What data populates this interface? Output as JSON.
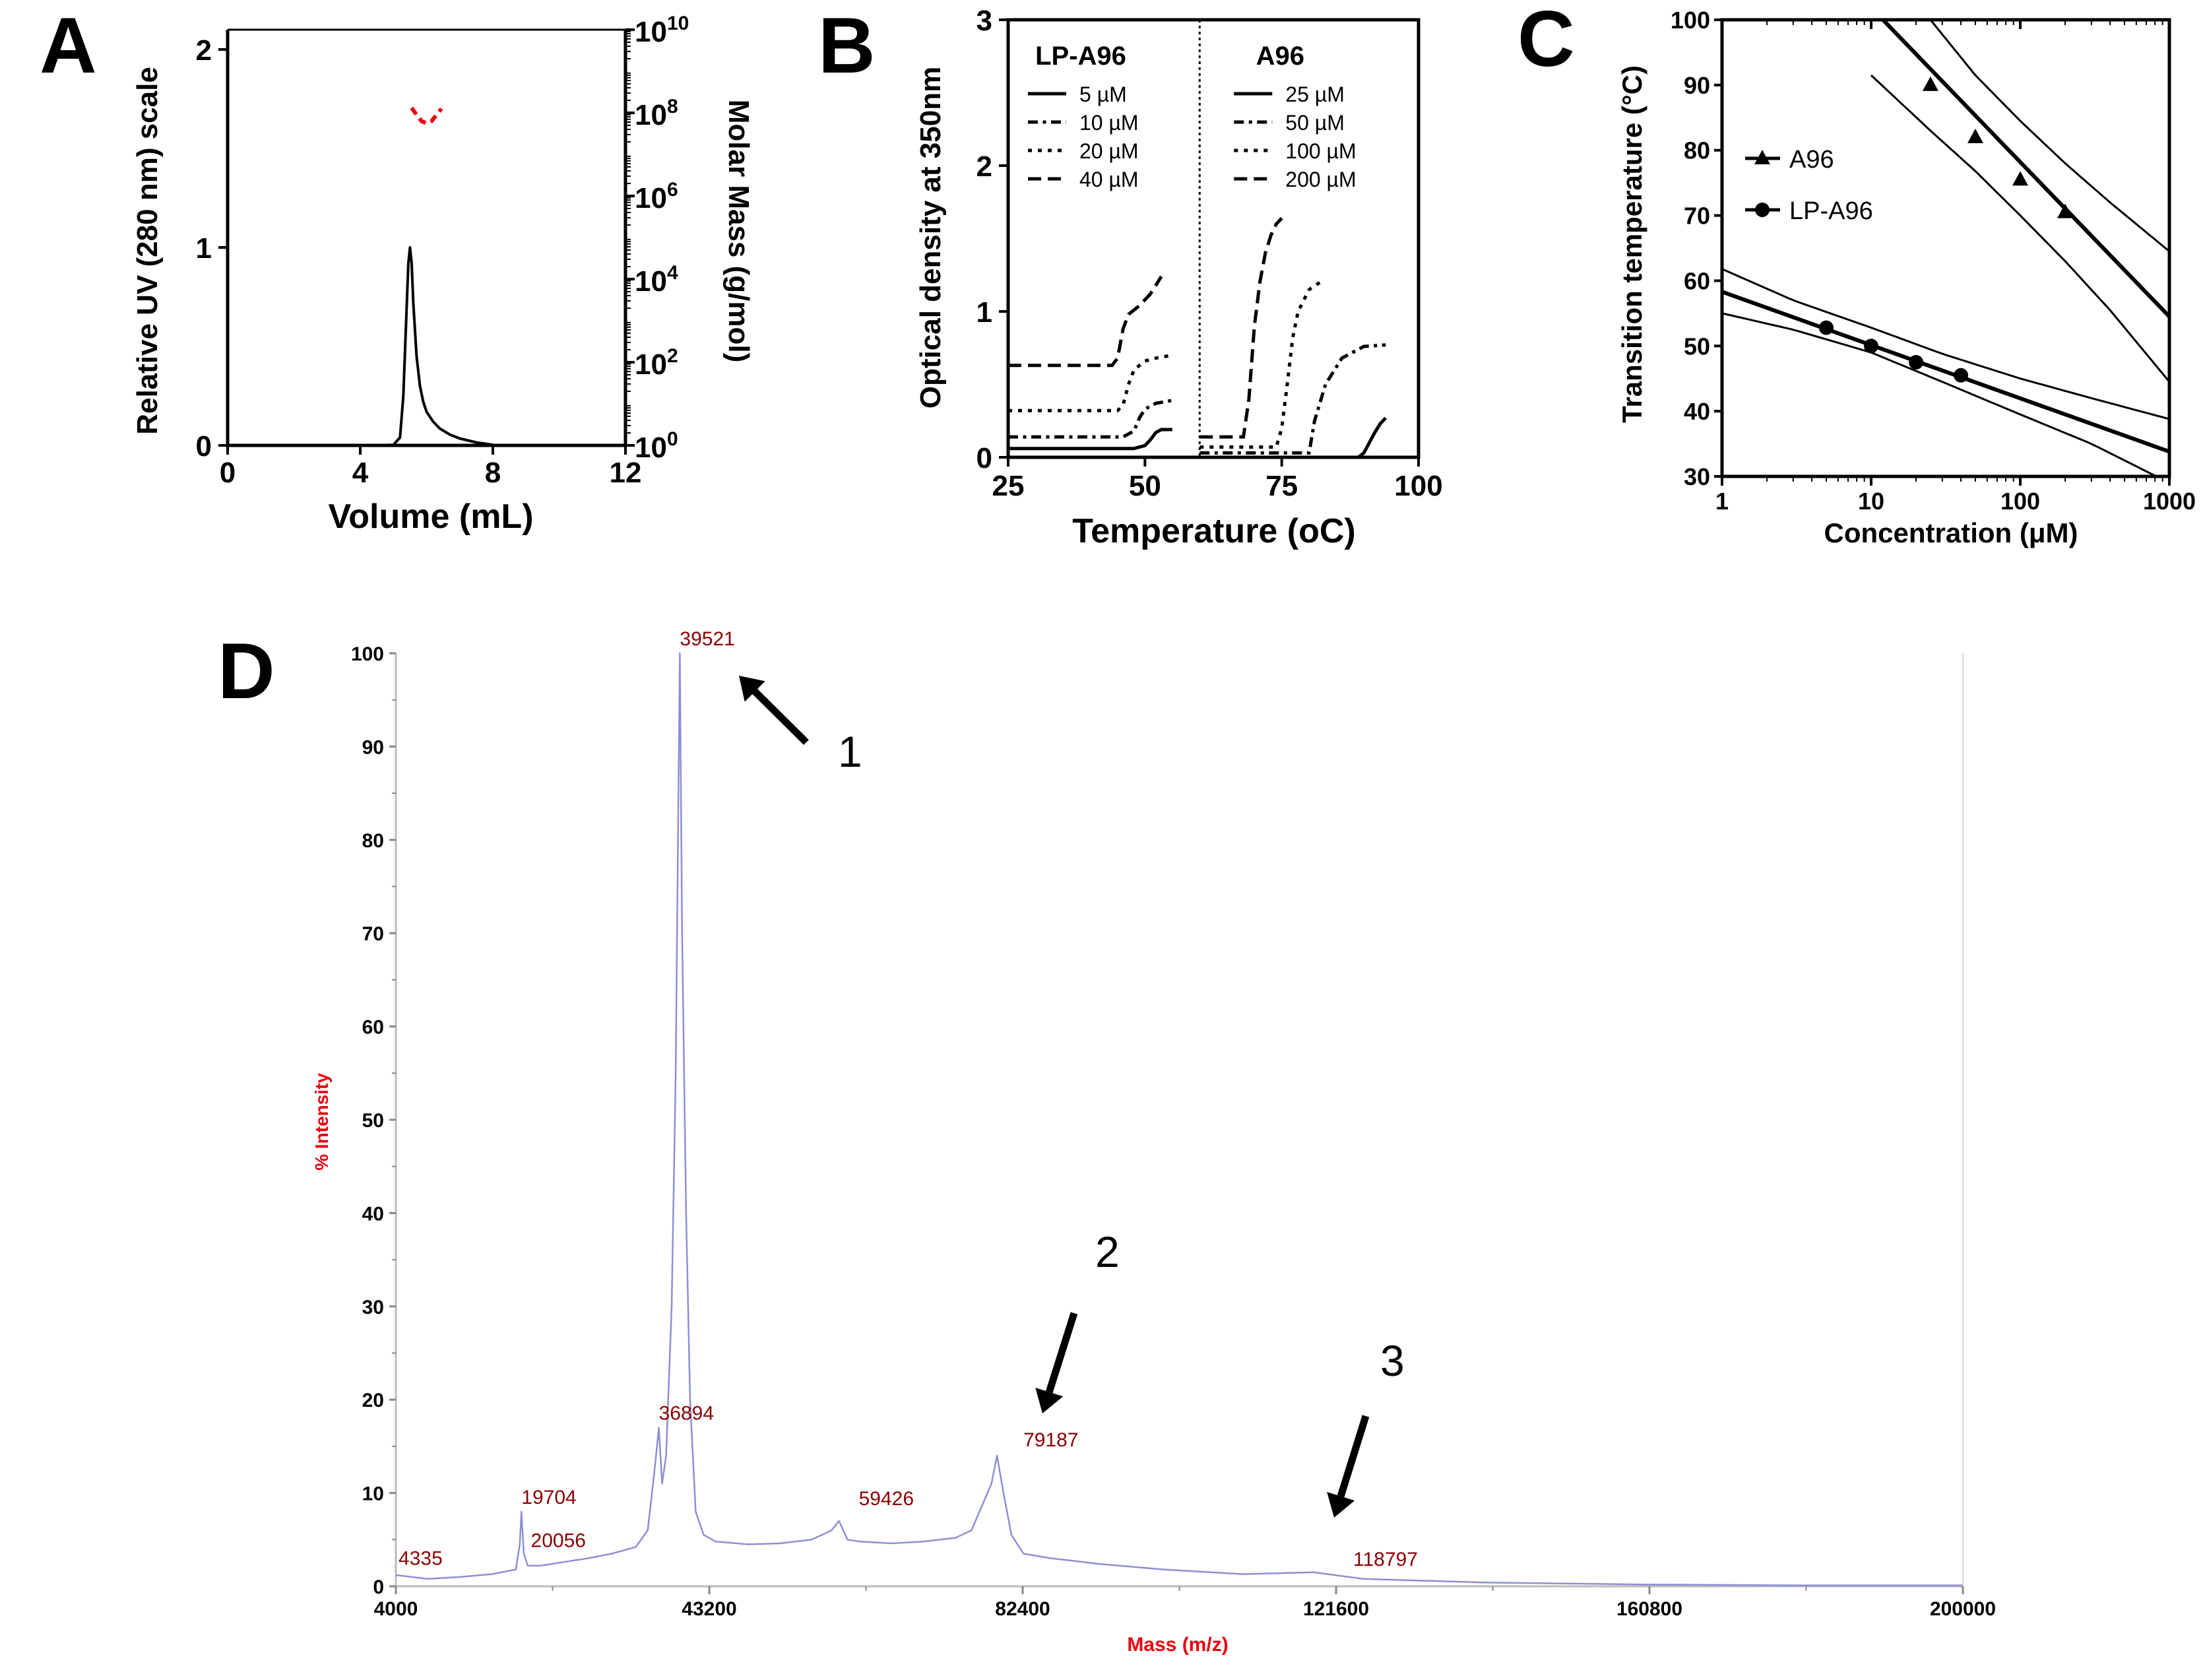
{
  "colors": {
    "axis": "#000000",
    "red": "#e8000f",
    "dark_red": "#8b0000",
    "spectrum": "#8e8fd4",
    "plot": "#000000"
  },
  "panels": {
    "A": {
      "label": "A"
    },
    "B": {
      "label": "B"
    },
    "C": {
      "label": "C"
    },
    "D": {
      "label": "D"
    }
  },
  "annotations": [
    {
      "label": "1",
      "points_to_value": "39521"
    },
    {
      "label": "2",
      "points_to_value": "79187"
    },
    {
      "label": "3",
      "points_to_value": "118797"
    }
  ],
  "chart_data": [
    {
      "id": "A",
      "type": "line",
      "title": "",
      "xlabel": "Volume (mL)",
      "ylabel": "Relative UV (280 nm) scale",
      "y2label": "Molar Mass (g/mol)",
      "xlim": [
        0,
        12
      ],
      "ylim": [
        0,
        2.1
      ],
      "xticks": [
        "0",
        "4",
        "8",
        "12"
      ],
      "yticks": [
        "0",
        "1",
        "2"
      ],
      "y2lim_log10": [
        0,
        10
      ],
      "y2ticks": [
        {
          "base": "10",
          "exp": "0",
          "log": 0
        },
        {
          "base": "10",
          "exp": "2",
          "log": 2
        },
        {
          "base": "10",
          "exp": "4",
          "log": 4
        },
        {
          "base": "10",
          "exp": "6",
          "log": 6
        },
        {
          "base": "10",
          "exp": "8",
          "log": 8
        },
        {
          "base": "10",
          "exp": "10",
          "log": 10
        }
      ],
      "series": [
        {
          "name": "UV 280 nm",
          "x": [
            0.0,
            4.5,
            5.0,
            5.2,
            5.3,
            5.4,
            5.45,
            5.5,
            5.55,
            5.6,
            5.7,
            5.8,
            5.9,
            6.0,
            6.2,
            6.4,
            6.7,
            7.0,
            7.5,
            8.0
          ],
          "y": [
            0,
            0,
            0.003,
            0.04,
            0.25,
            0.7,
            0.92,
            1.0,
            0.92,
            0.72,
            0.45,
            0.3,
            0.22,
            0.17,
            0.12,
            0.085,
            0.055,
            0.035,
            0.015,
            0.003
          ]
        },
        {
          "name": "Molar mass",
          "axis": "right-log",
          "x": [
            5.55,
            5.7,
            5.85,
            6.0,
            6.15,
            6.3,
            6.45
          ],
          "y": [
            8.12,
            7.95,
            7.8,
            7.75,
            7.8,
            7.95,
            8.1
          ]
        }
      ]
    },
    {
      "id": "B",
      "type": "line",
      "title": "",
      "xlabel": "Temperature (oC)",
      "ylabel": "Optical density at 350nm",
      "xlim": [
        25,
        100
      ],
      "ylim": [
        0,
        3
      ],
      "xticks": [
        "25",
        "50",
        "75",
        "100"
      ],
      "yticks": [
        "0",
        "1",
        "2",
        "3"
      ],
      "divider_x": 60,
      "legend_groups": [
        {
          "title": "LP-A96",
          "items": [
            {
              "label": "5 µM",
              "dash": "solid"
            },
            {
              "label": "10 µM",
              "dash": "dashdot"
            },
            {
              "label": "20 µM",
              "dash": "dot"
            },
            {
              "label": "40 µM",
              "dash": "dash"
            }
          ]
        },
        {
          "title": "A96",
          "items": [
            {
              "label": "25 µM",
              "dash": "solid"
            },
            {
              "label": "50 µM",
              "dash": "dashdot"
            },
            {
              "label": "100 µM",
              "dash": "dot"
            },
            {
              "label": "200 µM",
              "dash": "dash"
            }
          ]
        }
      ],
      "series": [
        {
          "name": "LP-A96 5 µM",
          "dash": "solid",
          "x": [
            25,
            48,
            50,
            51,
            52,
            53,
            55
          ],
          "y": [
            0.06,
            0.06,
            0.08,
            0.12,
            0.17,
            0.19,
            0.19
          ]
        },
        {
          "name": "LP-A96 10 µM",
          "dash": "dashdot",
          "x": [
            25,
            46,
            48,
            49,
            50,
            52,
            55
          ],
          "y": [
            0.14,
            0.14,
            0.18,
            0.27,
            0.33,
            0.37,
            0.39
          ]
        },
        {
          "name": "LP-A96 20 µM",
          "dash": "dot",
          "x": [
            25,
            45,
            46,
            47,
            48,
            50,
            52,
            55
          ],
          "y": [
            0.32,
            0.32,
            0.36,
            0.5,
            0.6,
            0.66,
            0.68,
            0.7
          ]
        },
        {
          "name": "LP-A96 40 µM",
          "dash": "dash",
          "x": [
            25,
            44,
            45,
            46,
            47,
            49,
            51,
            53
          ],
          "y": [
            0.63,
            0.63,
            0.68,
            0.88,
            0.98,
            1.04,
            1.12,
            1.24
          ]
        },
        {
          "name": "A96 25 µM",
          "dash": "solid",
          "x": [
            60,
            89,
            90,
            91,
            92,
            93,
            94
          ],
          "y": [
            0.0,
            0.0,
            0.03,
            0.1,
            0.17,
            0.23,
            0.27
          ]
        },
        {
          "name": "A96 50 µM",
          "dash": "dashdot",
          "x": [
            60,
            80,
            81,
            83,
            86,
            90,
            94
          ],
          "y": [
            0.03,
            0.03,
            0.25,
            0.5,
            0.68,
            0.76,
            0.77
          ]
        },
        {
          "name": "A96 100 µM",
          "dash": "dot",
          "x": [
            60,
            74,
            75,
            76,
            77,
            78,
            80,
            82
          ],
          "y": [
            0.07,
            0.07,
            0.2,
            0.5,
            0.82,
            1.0,
            1.15,
            1.2
          ]
        },
        {
          "name": "A96 200 µM",
          "dash": "dash",
          "x": [
            60,
            68,
            69,
            70,
            71,
            72,
            73,
            74,
            75
          ],
          "y": [
            0.14,
            0.14,
            0.4,
            0.9,
            1.2,
            1.4,
            1.52,
            1.6,
            1.64
          ]
        }
      ]
    },
    {
      "id": "C",
      "type": "scatter",
      "title": "",
      "xlabel": "Concentration (μM)",
      "ylabel": "Transition temperature (°C)",
      "xscale": "log",
      "xlim": [
        1,
        1000
      ],
      "ylim": [
        30,
        100
      ],
      "xticks": [
        "1",
        "10",
        "100",
        "1000"
      ],
      "yticks": [
        "30",
        "40",
        "50",
        "60",
        "70",
        "80",
        "90",
        "100"
      ],
      "legend": [
        {
          "label": "A96",
          "marker": "triangle"
        },
        {
          "label": "LP-A96",
          "marker": "circle"
        }
      ],
      "series": [
        {
          "name": "A96",
          "marker": "triangle",
          "x": [
            25,
            50,
            100,
            200
          ],
          "y": [
            90,
            82,
            75.5,
            70.5
          ],
          "fit": {
            "x": [
              12,
              1000
            ],
            "y": [
              100,
              54.5
            ]
          },
          "ci_upper": {
            "x": [
              25,
              50,
              100,
              200,
              400,
              1000
            ],
            "y": [
              100,
              91.5,
              84.5,
              78,
              72,
              64.5
            ]
          },
          "ci_lower": {
            "x": [
              10,
              25,
              50,
              100,
              200,
              400,
              1000
            ],
            "y": [
              91.5,
              83,
              76.8,
              70,
              63,
              55.5,
              44.5
            ]
          }
        },
        {
          "name": "LP-A96",
          "marker": "circle",
          "x": [
            5,
            10,
            20,
            40
          ],
          "y": [
            52.8,
            50,
            47.5,
            45.5
          ],
          "fit": {
            "x": [
              1,
              1000
            ],
            "y": [
              58.3,
              33.8
            ]
          },
          "ci_upper": {
            "x": [
              1,
              3,
              10,
              30,
              100,
              300,
              1000
            ],
            "y": [
              61.8,
              57,
              52.8,
              48.8,
              45,
              42,
              38.8
            ]
          },
          "ci_lower": {
            "x": [
              1,
              3,
              10,
              30,
              100,
              300,
              1000
            ],
            "y": [
              55,
              52.5,
              49,
              44.5,
              39.5,
              35,
              29
            ]
          }
        }
      ]
    },
    {
      "id": "D",
      "type": "line",
      "title": "",
      "xlabel": "Mass (m/z)",
      "ylabel": "% Intensity",
      "xlim": [
        4000,
        200000
      ],
      "ylim": [
        0,
        100
      ],
      "xticks": [
        "4000",
        "43200",
        "82400",
        "121600",
        "160800",
        "200000"
      ],
      "yticks": [
        "0",
        "10",
        "20",
        "30",
        "40",
        "50",
        "60",
        "70",
        "80",
        "90",
        "100"
      ],
      "peak_labels": [
        {
          "label": "39521",
          "x": 39521,
          "y": 100
        },
        {
          "label": "36894",
          "x": 36894,
          "y": 17
        },
        {
          "label": "19704",
          "x": 19704,
          "y": 8
        },
        {
          "label": "20056",
          "x": 20056,
          "y": 3.5
        },
        {
          "label": "4335",
          "x": 4335,
          "y": 1.3
        },
        {
          "label": "59426",
          "x": 59426,
          "y": 7
        },
        {
          "label": "79187",
          "x": 79187,
          "y": 14
        },
        {
          "label": "118797",
          "x": 118797,
          "y": 1.5
        }
      ],
      "series": [
        {
          "name": "spectrum",
          "x": [
            4000,
            8000,
            12000,
            16000,
            19000,
            19500,
            19704,
            20000,
            20500,
            22000,
            25000,
            28000,
            31000,
            34000,
            35500,
            36300,
            36894,
            37300,
            37800,
            38500,
            39000,
            39521,
            39800,
            40300,
            40800,
            41500,
            42500,
            44000,
            48000,
            52000,
            56000,
            58500,
            59426,
            60500,
            62000,
            66000,
            70000,
            74000,
            76000,
            77500,
            78500,
            79187,
            80000,
            81000,
            82500,
            86000,
            92000,
            100000,
            110000,
            118797,
            125000,
            140000,
            160000,
            180000,
            200000
          ],
          "y": [
            1.2,
            0.8,
            1.0,
            1.3,
            1.8,
            4.5,
            8.0,
            3.5,
            2.2,
            2.2,
            2.6,
            3.0,
            3.5,
            4.2,
            6.0,
            12.0,
            17.0,
            11.0,
            14.0,
            30.0,
            55.0,
            100.0,
            70.0,
            40.0,
            20.0,
            8.0,
            5.5,
            4.8,
            4.5,
            4.6,
            5.0,
            6.0,
            7.0,
            5.0,
            4.8,
            4.6,
            4.8,
            5.2,
            6.0,
            9.0,
            11.0,
            14.0,
            10.0,
            5.5,
            3.5,
            3.0,
            2.4,
            1.8,
            1.3,
            1.5,
            0.8,
            0.4,
            0.2,
            0.1,
            0.1
          ]
        }
      ]
    }
  ]
}
